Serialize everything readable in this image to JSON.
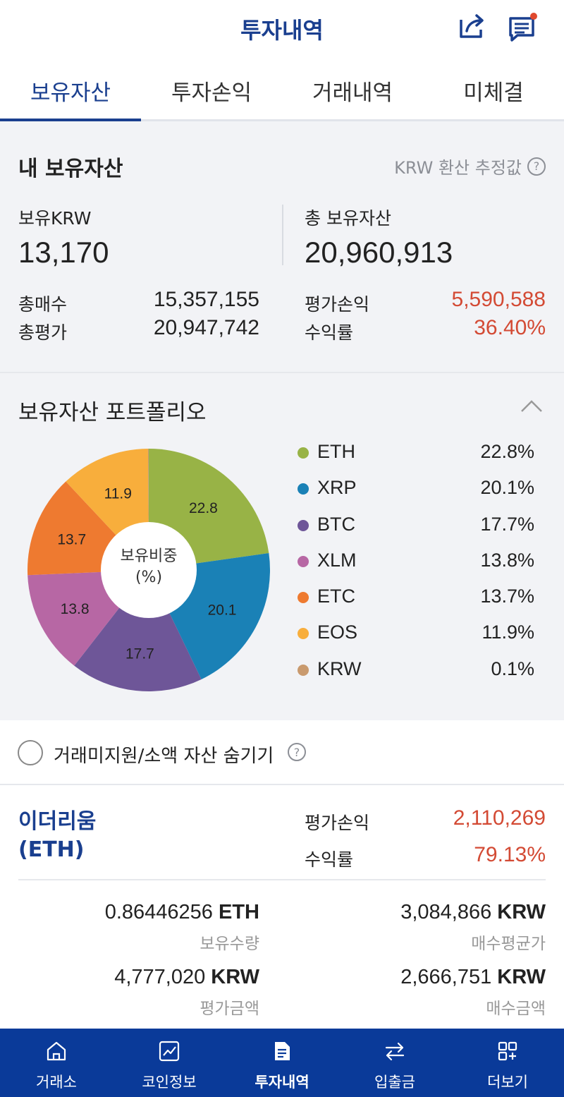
{
  "header": {
    "title": "투자내역",
    "share_icon": "share-icon",
    "message_icon": "message-notification-icon"
  },
  "tabs": [
    {
      "label": "보유자산",
      "active": true
    },
    {
      "label": "투자손익",
      "active": false
    },
    {
      "label": "거래내역",
      "active": false
    },
    {
      "label": "미체결",
      "active": false
    }
  ],
  "summary": {
    "title": "내 보유자산",
    "hint": "KRW 환산 추정값",
    "krw_label": "보유KRW",
    "krw_value": "13,170",
    "total_label": "총 보유자산",
    "total_value": "20,960,913",
    "buy_label": "총매수",
    "buy_value": "15,357,155",
    "eval_label": "총평가",
    "eval_value": "20,947,742",
    "pnl_label": "평가손익",
    "pnl_value": "5,590,588",
    "rate_label": "수익률",
    "rate_value": "36.40%"
  },
  "portfolio": {
    "title": "보유자산 포트폴리오",
    "center_label": "보유비중",
    "center_unit": "(%)",
    "legend": [
      {
        "name": "ETH",
        "pct": "22.8%",
        "color": "#98b346"
      },
      {
        "name": "XRP",
        "pct": "20.1%",
        "color": "#1a81b6"
      },
      {
        "name": "BTC",
        "pct": "17.7%",
        "color": "#6e5698"
      },
      {
        "name": "XLM",
        "pct": "13.8%",
        "color": "#b767a4"
      },
      {
        "name": "ETC",
        "pct": "13.7%",
        "color": "#ee7a30"
      },
      {
        "name": "EOS",
        "pct": "11.9%",
        "color": "#f8ae3c"
      },
      {
        "name": "KRW",
        "pct": "0.1%",
        "color": "#c99a6e"
      }
    ]
  },
  "chart_data": {
    "type": "pie",
    "categories": [
      "ETH",
      "XRP",
      "BTC",
      "XLM",
      "ETC",
      "EOS",
      "KRW"
    ],
    "values": [
      22.8,
      20.1,
      17.7,
      13.8,
      13.7,
      11.9,
      0.1
    ],
    "data_labels": [
      "22.8",
      "20.1",
      "17.7",
      "13.8",
      "13.7",
      "11.9",
      ""
    ],
    "title": "보유비중 (%)"
  },
  "hide_option": {
    "label": "거래미지원/소액 자산 숨기기",
    "checked": false
  },
  "asset": {
    "name_line1": "이더리움",
    "name_line2": "(ETH)",
    "pnl_label": "평가손익",
    "pnl_value": "2,110,269",
    "rate_label": "수익률",
    "rate_value": "79.13%",
    "qty_value": "0.86446256",
    "qty_unit": "ETH",
    "qty_label": "보유수량",
    "avg_value": "3,084,866",
    "avg_unit": "KRW",
    "avg_label": "매수평균가",
    "evalamt_value": "4,777,020",
    "evalamt_unit": "KRW",
    "evalamt_label": "평가금액",
    "buyamt_value": "2,666,751",
    "buyamt_unit": "KRW",
    "buyamt_label": "매수금액"
  },
  "bottom_nav": [
    {
      "label": "거래소",
      "icon": "home-icon",
      "active": false
    },
    {
      "label": "코인정보",
      "icon": "chart-icon",
      "active": false
    },
    {
      "label": "투자내역",
      "icon": "document-icon",
      "active": true
    },
    {
      "label": "입출금",
      "icon": "transfer-icon",
      "active": false
    },
    {
      "label": "더보기",
      "icon": "more-grid-icon",
      "active": false
    }
  ]
}
